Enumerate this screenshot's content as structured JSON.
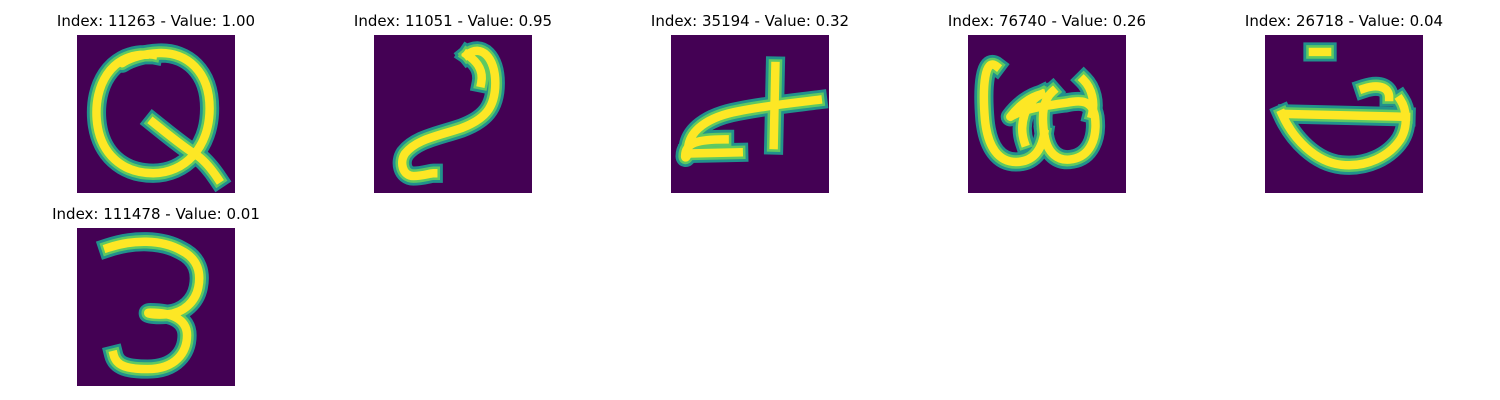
{
  "colors": {
    "background": "#440154",
    "stroke_edge": "#21918c",
    "stroke_mid": "#5ec962",
    "stroke_core": "#fde725"
  },
  "panels": [
    {
      "title": "Index: 11263 - Value: 1.00",
      "glyph": "handwritten-letter-q"
    },
    {
      "title": "Index: 11051 - Value: 0.95",
      "glyph": "handwritten-s-curve"
    },
    {
      "title": "Index: 35194 - Value: 0.32",
      "glyph": "handwritten-plus-hook"
    },
    {
      "title": "Index: 76740 - Value: 0.26",
      "glyph": "handwritten-loops"
    },
    {
      "title": "Index: 26718 - Value: 0.04",
      "glyph": "handwritten-bowl-bar"
    },
    {
      "title": "Index: 111478 - Value: 0.01",
      "glyph": "handwritten-digit-3"
    }
  ]
}
